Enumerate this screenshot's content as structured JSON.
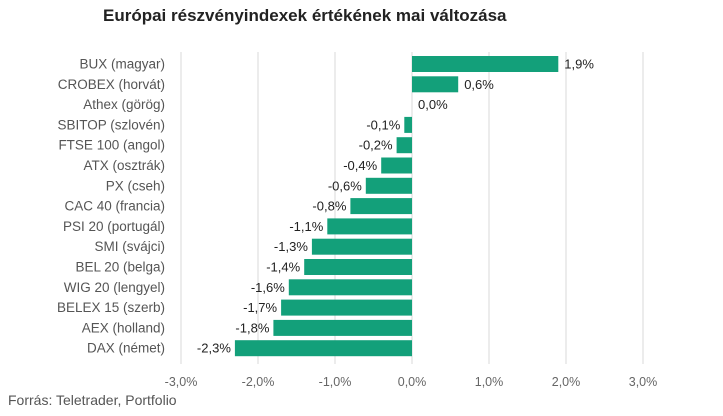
{
  "chart_data": {
    "type": "bar",
    "orientation": "horizontal",
    "title": "Európai részvényindexek értékének mai változása",
    "categories": [
      "BUX (magyar)",
      "CROBEX (horvát)",
      "Athex (görög)",
      "SBITOP (szlovén)",
      "FTSE 100 (angol)",
      "ATX (osztrák)",
      "PX (cseh)",
      "CAC 40 (francia)",
      "PSI 20 (portugál)",
      "SMI (svájci)",
      "BEL 20 (belga)",
      "WIG 20 (lengyel)",
      "BELEX 15 (szerb)",
      "AEX (holland)",
      "DAX (német)"
    ],
    "values": [
      1.9,
      0.6,
      0.0,
      -0.1,
      -0.2,
      -0.4,
      -0.6,
      -0.8,
      -1.1,
      -1.3,
      -1.4,
      -1.6,
      -1.7,
      -1.8,
      -2.3
    ],
    "value_labels": [
      "1,9%",
      "0,6%",
      "0,0%",
      "-0,1%",
      "-0,2%",
      "-0,4%",
      "-0,6%",
      "-0,8%",
      "-1,1%",
      "-1,3%",
      "-1,4%",
      "-1,6%",
      "-1,7%",
      "-1,8%",
      "-2,3%"
    ],
    "xlim": [
      -3,
      3
    ],
    "xticks": [
      -3,
      -2,
      -1,
      0,
      1,
      2,
      3
    ],
    "xtick_labels": [
      "-3,0%",
      "-2,0%",
      "-1,0%",
      "0,0%",
      "1,0%",
      "2,0%",
      "3,0%"
    ],
    "grid": true,
    "legend": false,
    "bar_color": "#13a07a",
    "grid_color": "#d9d9d9",
    "source": "Forrás: Teletrader, Portfolio"
  }
}
